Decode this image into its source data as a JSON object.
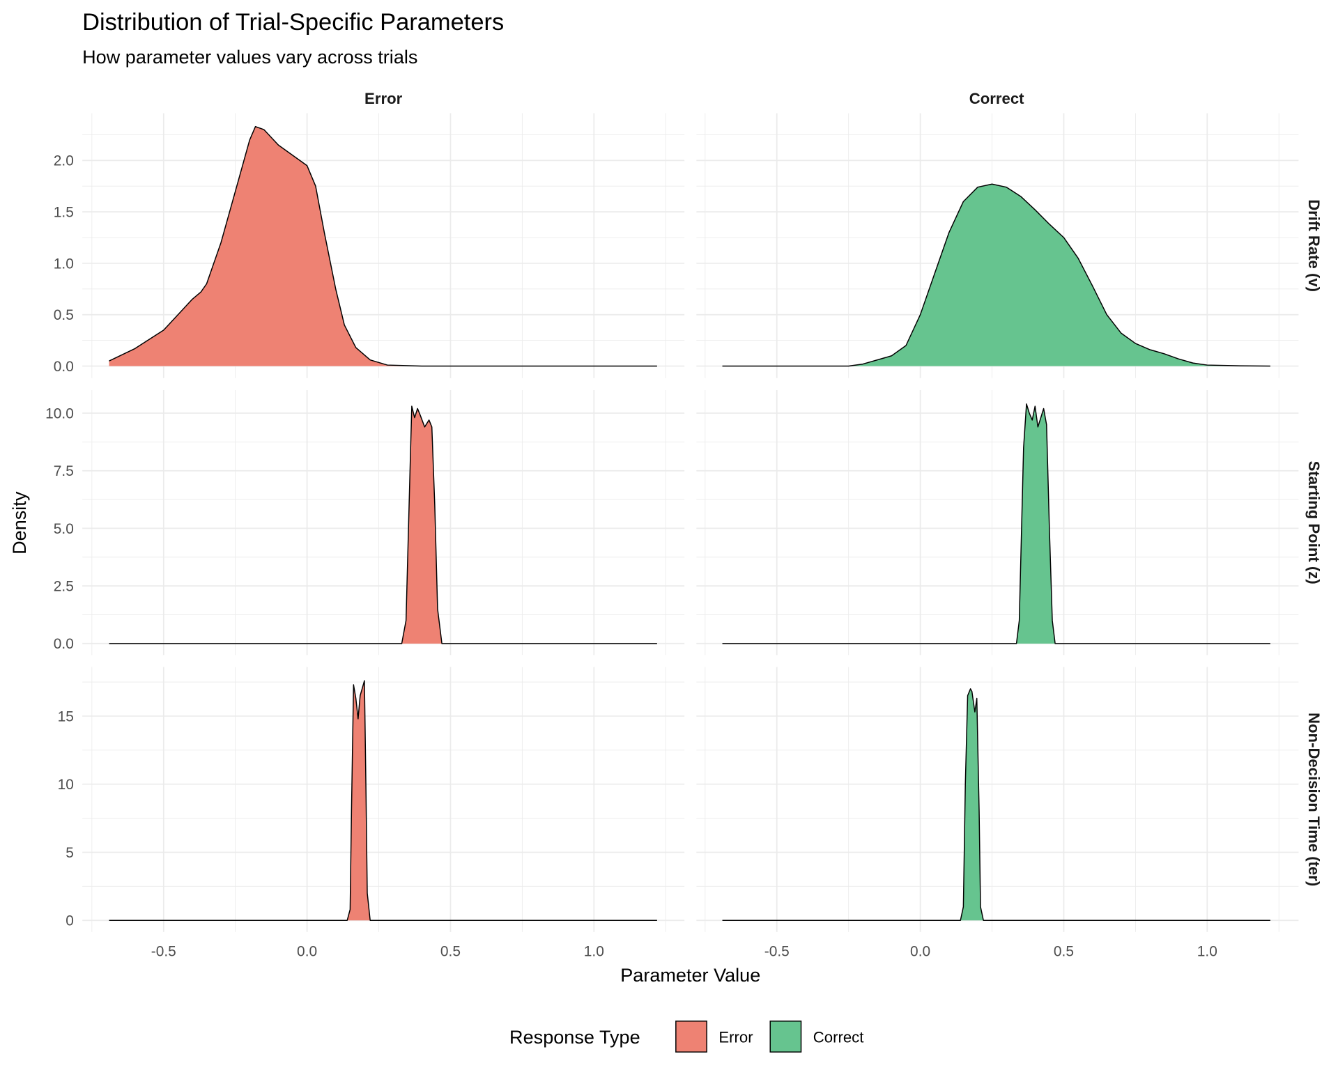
{
  "chart_data": {
    "type": "area",
    "title": "Distribution of Trial-Specific Parameters",
    "subtitle": "How parameter values vary across trials",
    "xlabel": "Parameter Value",
    "ylabel": "Density",
    "xlim": [
      -0.69,
      1.22
    ],
    "x_ticks": [
      -0.5,
      0.0,
      0.5,
      1.0
    ],
    "x_tick_labels": [
      "-0.5",
      "0.0",
      "0.5",
      "1.0"
    ],
    "columns": [
      "Error",
      "Correct"
    ],
    "rows": [
      {
        "label": "Drift Rate (v)",
        "y_ticks": [
          0,
          0.5,
          1.0,
          1.5,
          2.0
        ],
        "y_tick_labels": [
          "0.0",
          "0.5",
          "1.0",
          "1.5",
          "2.0"
        ],
        "ylim": [
          -0.117,
          2.46
        ]
      },
      {
        "label": "Starting Point (z)",
        "y_ticks": [
          0,
          2.5,
          5,
          7.5,
          10
        ],
        "y_tick_labels": [
          "0.0",
          "2.5",
          "5.0",
          "7.5",
          "10.0"
        ],
        "ylim": [
          -0.5,
          11.0
        ]
      },
      {
        "label": "Non-Decision Time (ter)",
        "y_ticks": [
          0,
          5,
          10,
          15
        ],
        "y_tick_labels": [
          "0",
          "5",
          "10",
          "15"
        ],
        "ylim": [
          -0.85,
          18.6
        ]
      }
    ],
    "legend": {
      "title": "Response Type",
      "entries": [
        "Error",
        "Correct"
      ],
      "position": "bottom"
    },
    "colors": {
      "Error": "#EE8273",
      "Correct": "#66C48F"
    },
    "grid": true,
    "series": [
      {
        "row": 0,
        "col": "Error",
        "x": [
          -0.69,
          -0.6,
          -0.5,
          -0.45,
          -0.4,
          -0.37,
          -0.35,
          -0.3,
          -0.25,
          -0.2,
          -0.18,
          -0.15,
          -0.1,
          -0.05,
          0,
          0.03,
          0.06,
          0.1,
          0.13,
          0.17,
          0.22,
          0.28,
          0.4,
          1.22
        ],
        "y": [
          0.05,
          0.17,
          0.35,
          0.5,
          0.65,
          0.72,
          0.8,
          1.2,
          1.7,
          2.2,
          2.33,
          2.3,
          2.15,
          2.05,
          1.95,
          1.75,
          1.3,
          0.75,
          0.4,
          0.18,
          0.06,
          0.01,
          0,
          0
        ]
      },
      {
        "row": 0,
        "col": "Correct",
        "x": [
          -0.69,
          -0.25,
          -0.2,
          -0.1,
          -0.05,
          0,
          0.05,
          0.1,
          0.15,
          0.2,
          0.25,
          0.3,
          0.35,
          0.4,
          0.45,
          0.5,
          0.55,
          0.6,
          0.65,
          0.7,
          0.75,
          0.8,
          0.85,
          0.9,
          0.95,
          1.0,
          1.1,
          1.22
        ],
        "y": [
          0,
          0,
          0.02,
          0.1,
          0.2,
          0.5,
          0.9,
          1.3,
          1.6,
          1.74,
          1.77,
          1.74,
          1.65,
          1.52,
          1.38,
          1.25,
          1.05,
          0.78,
          0.5,
          0.32,
          0.22,
          0.16,
          0.12,
          0.07,
          0.03,
          0.01,
          0.003,
          0
        ]
      },
      {
        "row": 1,
        "col": "Error",
        "x": [
          -0.69,
          0.33,
          0.345,
          0.36,
          0.365,
          0.375,
          0.385,
          0.395,
          0.41,
          0.425,
          0.435,
          0.445,
          0.455,
          0.47,
          1.22
        ],
        "y": [
          0,
          0,
          1,
          8,
          10.3,
          9.8,
          10.2,
          9.9,
          9.4,
          9.7,
          9.4,
          6,
          1.5,
          0,
          0
        ]
      },
      {
        "row": 1,
        "col": "Correct",
        "x": [
          -0.69,
          0.335,
          0.345,
          0.36,
          0.37,
          0.38,
          0.39,
          0.4,
          0.41,
          0.42,
          0.43,
          0.44,
          0.45,
          0.46,
          0.47,
          1.22
        ],
        "y": [
          0,
          0,
          1,
          8.5,
          10.4,
          10,
          9.7,
          10.3,
          9.4,
          9.8,
          10.2,
          9.5,
          5,
          1,
          0,
          0
        ]
      },
      {
        "row": 2,
        "col": "Error",
        "x": [
          -0.69,
          0.14,
          0.15,
          0.155,
          0.162,
          0.17,
          0.178,
          0.185,
          0.2,
          0.205,
          0.21,
          0.22,
          1.22
        ],
        "y": [
          0,
          0,
          0.8,
          8,
          17.3,
          16.3,
          14.8,
          16.5,
          17.6,
          10,
          2,
          0,
          0
        ]
      },
      {
        "row": 2,
        "col": "Correct",
        "x": [
          -0.69,
          0.14,
          0.15,
          0.157,
          0.165,
          0.175,
          0.18,
          0.19,
          0.197,
          0.205,
          0.21,
          0.22,
          1.22
        ],
        "y": [
          0,
          0,
          1,
          10,
          16.5,
          17,
          16.8,
          15.3,
          16.3,
          8,
          1,
          0,
          0
        ]
      }
    ]
  }
}
